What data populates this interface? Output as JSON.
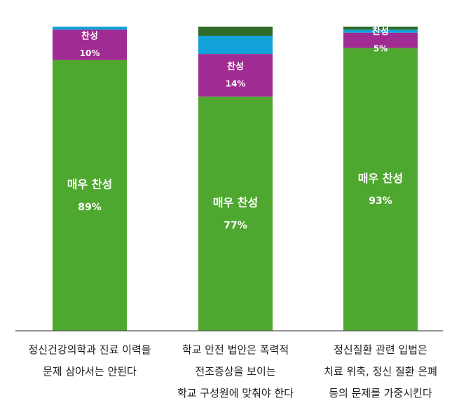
{
  "chart_data": {
    "type": "bar",
    "stacked": true,
    "percent": true,
    "ylim": [
      0,
      100
    ],
    "grid": false,
    "legend": "none",
    "categories": [
      [
        "정신건강의학과 진료 이력을",
        "문제 삼아서는 안된다"
      ],
      [
        "학교 안전 법안은 폭력적",
        "전조증상을 보이는",
        "학교 구성원에 맞춰야 한다"
      ],
      [
        "정신질환 관련 입법은",
        "치료 위축, 정신 질환 은폐",
        "등의 문제를 가중시킨다"
      ]
    ],
    "series": [
      {
        "name": "매우 찬성",
        "color": "#4ea72e",
        "values": [
          89,
          77,
          93
        ],
        "value_labels": [
          "89%",
          "77%",
          "93%"
        ]
      },
      {
        "name": "찬성",
        "color": "#a02b93",
        "values": [
          10,
          14,
          5
        ],
        "value_labels": [
          "10%",
          "14%",
          "5%"
        ]
      },
      {
        "name": "",
        "color": "#12a1d8",
        "values": [
          1,
          6,
          1
        ]
      },
      {
        "name": "",
        "color": "#2e6b27",
        "values": [
          0,
          3,
          1
        ]
      }
    ]
  }
}
